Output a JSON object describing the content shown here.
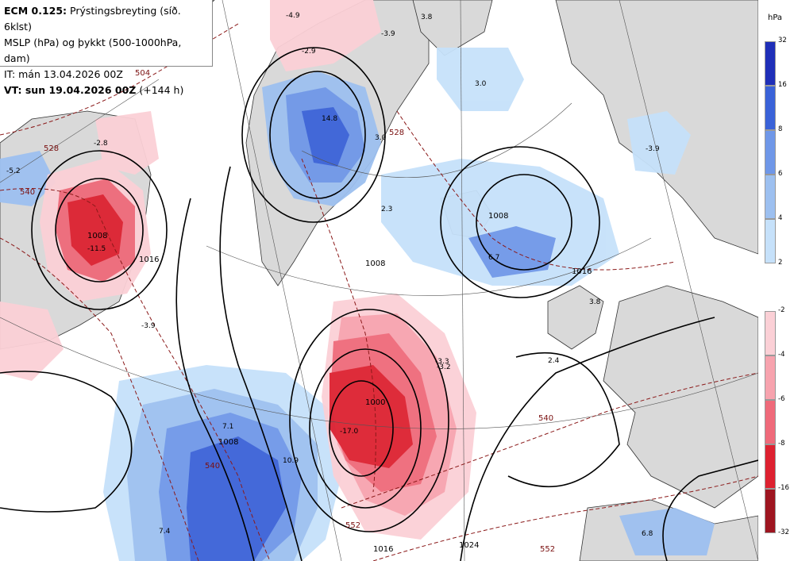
{
  "header": {
    "line1_bold": "ECM 0.125:",
    "line1_rest": "Prýstingsbreyting (síð. 6klst)",
    "line2": "MSLP (hPa) og þykkt (500-1000hPa, dam)",
    "line3": "IT: mán 13.04.2026 00Z",
    "line4_bold": "VT: sun 19.04.2026 00Z",
    "line4_rest": "(+144 h)"
  },
  "legend": {
    "unit": "hPa",
    "positive_ticks": [
      "32",
      "16",
      "8",
      "6",
      "4",
      "2"
    ],
    "negative_ticks": [
      "-2",
      "-4",
      "-6",
      "-8",
      "-16",
      "-32"
    ],
    "positive_colors": [
      "#1f2fb8",
      "#3a62d8",
      "#6f97e8",
      "#9dc0f0",
      "#c6e1fa"
    ],
    "negative_colors": [
      "#fbd0d6",
      "#f7a3ae",
      "#ef6a7a",
      "#dd2130",
      "#9e1520"
    ]
  },
  "map": {
    "mslp_labels": [
      "1008",
      "1016",
      "1008",
      "1008",
      "1000",
      "1024",
      "1016",
      "1016",
      "1008"
    ],
    "thickness_labels": [
      "504",
      "528",
      "540",
      "552",
      "540",
      "552",
      "540",
      "528"
    ],
    "change_labels": [
      "-4.9",
      "3.8",
      "-3.9",
      "-2.9",
      "3.0",
      "-2.8",
      "-5.2",
      "14.8",
      "3.0",
      "2.3",
      "-11.5",
      "-3.9",
      "6.7",
      "3.8",
      "2.4",
      "-3.3",
      "-3.2",
      "7.1",
      "-17.0",
      "10.9",
      "7.4",
      "6.8",
      "-3.9"
    ]
  }
}
